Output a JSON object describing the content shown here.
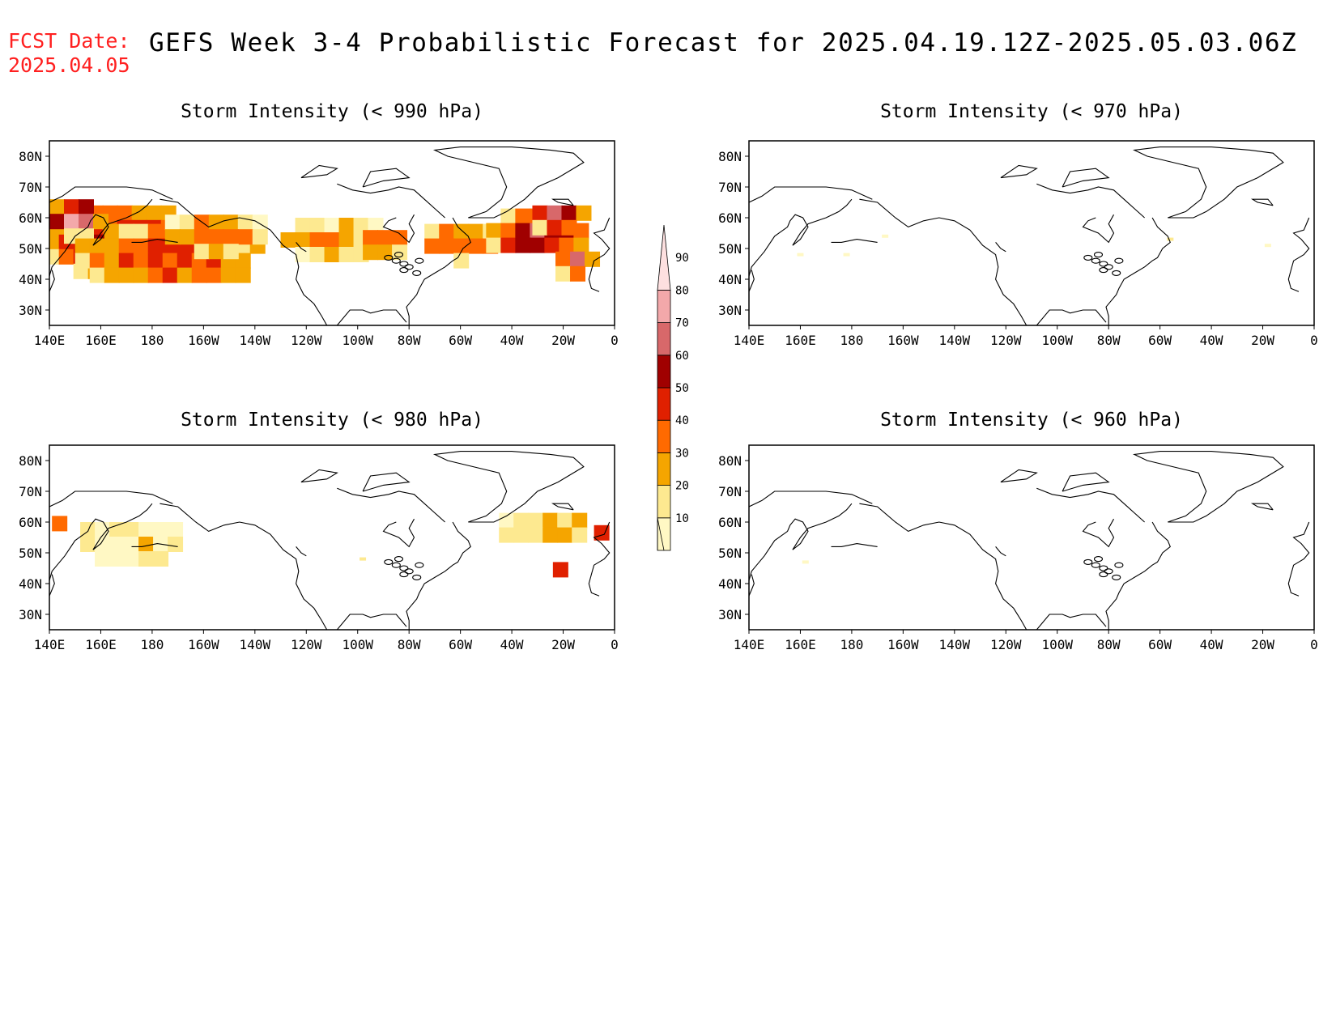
{
  "header": {
    "fcst_label": "FCST Date:",
    "fcst_date": "2025.04.05",
    "title": "GEFS Week 3-4 Probabilistic Forecast for 2025.04.19.12Z-2025.05.03.06Z"
  },
  "axes": {
    "lon_labels": [
      "140E",
      "160E",
      "180",
      "160W",
      "140W",
      "120W",
      "100W",
      "80W",
      "60W",
      "40W",
      "20W",
      "0"
    ],
    "lat_labels": [
      "80N",
      "70N",
      "60N",
      "50N",
      "40N",
      "30N"
    ],
    "lon_range_deg_east": [
      140,
      360
    ],
    "lat_range": [
      25,
      85
    ]
  },
  "colorbar": {
    "levels": [
      "10",
      "20",
      "30",
      "40",
      "50",
      "60",
      "70",
      "80",
      "90"
    ],
    "colors": [
      "#fff8c4",
      "#fde990",
      "#f5a500",
      "#ff6a00",
      "#e02000",
      "#a00000",
      "#d8686a",
      "#f3a8aa",
      "#fde0e0"
    ]
  },
  "panels": [
    {
      "title": "Storm Intensity (< 990 hPa)",
      "intensity": "high",
      "regions": [
        {
          "lon": 168,
          "lat": 52,
          "rlon": 30,
          "rlat": 12,
          "level": 5
        },
        {
          "lon": 150,
          "lat": 60,
          "rlon": 10,
          "rlat": 6,
          "level": 7
        },
        {
          "lon": 185,
          "lat": 48,
          "rlon": 35,
          "rlat": 10,
          "level": 4
        },
        {
          "lon": 205,
          "lat": 55,
          "rlon": 20,
          "rlat": 6,
          "level": 3
        },
        {
          "lon": 250,
          "lat": 53,
          "rlon": 20,
          "rlat": 7,
          "level": 2
        },
        {
          "lon": 272,
          "lat": 52,
          "rlon": 10,
          "rlat": 4,
          "level": 4
        },
        {
          "lon": 300,
          "lat": 52,
          "rlon": 14,
          "rlat": 6,
          "level": 4
        },
        {
          "lon": 330,
          "lat": 55,
          "rlon": 20,
          "rlat": 8,
          "level": 5
        },
        {
          "lon": 338,
          "lat": 60,
          "rlon": 10,
          "rlat": 4,
          "level": 7
        },
        {
          "lon": 345,
          "lat": 45,
          "rlon": 8,
          "rlat": 4,
          "level": 6
        }
      ]
    },
    {
      "title": "Storm Intensity (< 970 hPa)",
      "intensity": "trace",
      "regions": [
        {
          "lon": 160,
          "lat": 48,
          "rlon": 2,
          "rlat": 1,
          "level": 0
        },
        {
          "lon": 178,
          "lat": 48,
          "rlon": 2,
          "rlat": 1,
          "level": 0
        },
        {
          "lon": 193,
          "lat": 54,
          "rlon": 1,
          "rlat": 1,
          "level": 0
        },
        {
          "lon": 304,
          "lat": 53,
          "rlon": 2,
          "rlat": 1,
          "level": 1
        },
        {
          "lon": 342,
          "lat": 51,
          "rlon": 1,
          "rlat": 1,
          "level": 0
        }
      ]
    },
    {
      "title": "Storm Intensity (< 980 hPa)",
      "intensity": "medium",
      "regions": [
        {
          "lon": 172,
          "lat": 53,
          "rlon": 20,
          "rlat": 7,
          "level": 1
        },
        {
          "lon": 145,
          "lat": 60,
          "rlon": 4,
          "rlat": 2,
          "level": 3
        },
        {
          "lon": 333,
          "lat": 58,
          "rlon": 18,
          "rlat": 5,
          "level": 2
        },
        {
          "lon": 339,
          "lat": 45,
          "rlon": 3,
          "rlat": 2,
          "level": 4
        },
        {
          "lon": 355,
          "lat": 56,
          "rlon": 3,
          "rlat": 3,
          "level": 4
        },
        {
          "lon": 262,
          "lat": 48,
          "rlon": 2,
          "rlat": 1,
          "level": 1
        }
      ]
    },
    {
      "title": "Storm Intensity (< 960 hPa)",
      "intensity": "trace",
      "regions": [
        {
          "lon": 162,
          "lat": 47,
          "rlon": 1,
          "rlat": 1,
          "level": 0
        }
      ]
    }
  ]
}
